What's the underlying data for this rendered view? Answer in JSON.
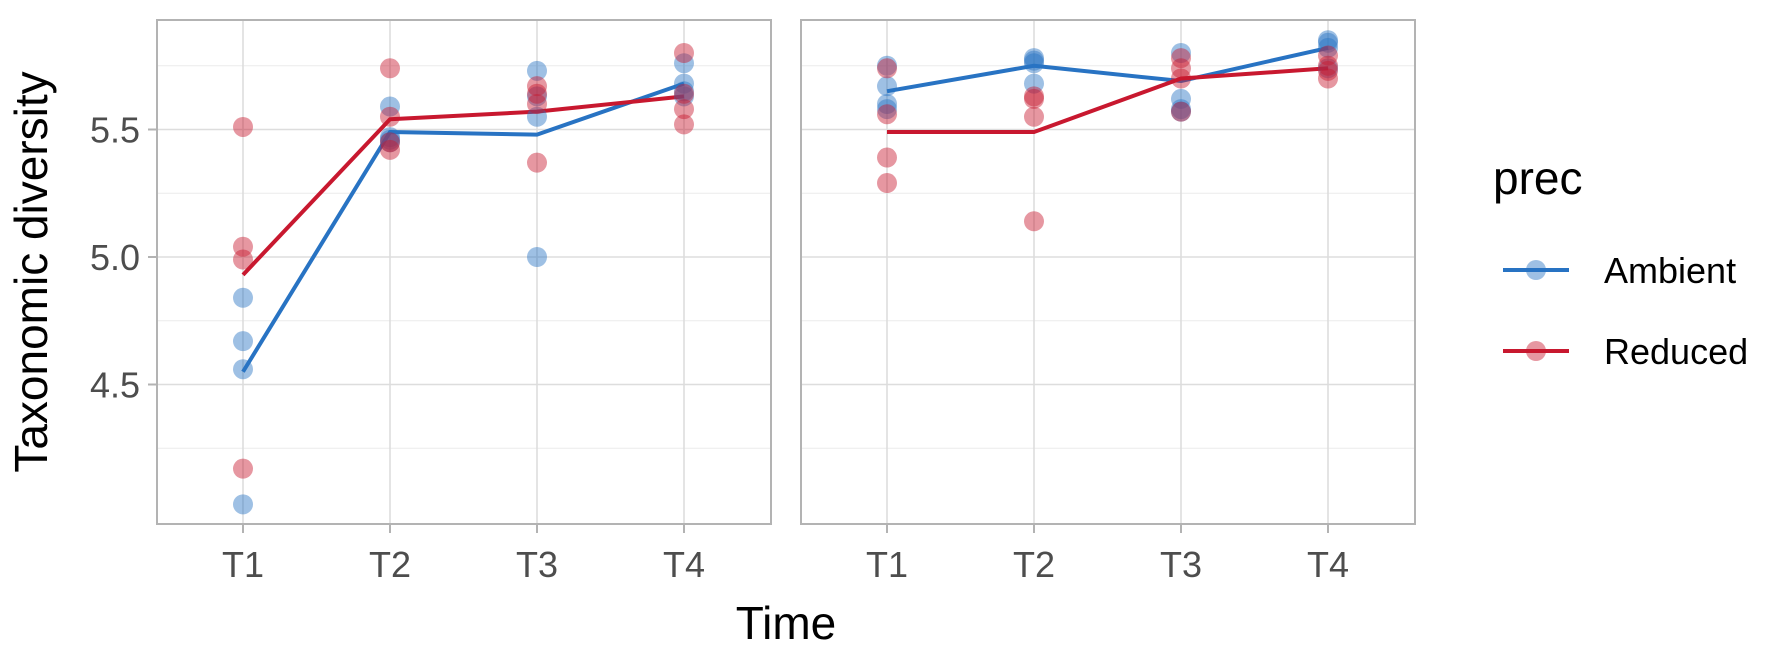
{
  "chart_data": {
    "type": "scatter",
    "xlabel": "Time",
    "ylabel": "Taxonomic diversity",
    "categories": [
      "T1",
      "T2",
      "T3",
      "T4"
    ],
    "yticks": [
      4.5,
      5.0,
      5.5
    ],
    "ytick_labels": [
      "4.5",
      "5.0",
      "5.5"
    ],
    "ylim": [
      3.95,
      5.93
    ],
    "grid": true,
    "legend": {
      "title": "prec",
      "position": "right",
      "entries": [
        {
          "name": "Ambient",
          "color": "#2873c3"
        },
        {
          "name": "Reduced",
          "color": "#c8182f"
        }
      ]
    },
    "panels": [
      {
        "series": [
          {
            "name": "Ambient",
            "color": "#2873c3",
            "line": [
              4.55,
              5.49,
              5.48,
              5.68
            ],
            "points": [
              {
                "x": "T1",
                "y": 4.84
              },
              {
                "x": "T1",
                "y": 4.67
              },
              {
                "x": "T1",
                "y": 4.56
              },
              {
                "x": "T1",
                "y": 4.03
              },
              {
                "x": "T2",
                "y": 5.59
              },
              {
                "x": "T2",
                "y": 5.47
              },
              {
                "x": "T2",
                "y": 5.46
              },
              {
                "x": "T2",
                "y": 5.45
              },
              {
                "x": "T3",
                "y": 5.73
              },
              {
                "x": "T3",
                "y": 5.63
              },
              {
                "x": "T3",
                "y": 5.55
              },
              {
                "x": "T3",
                "y": 5.0
              },
              {
                "x": "T4",
                "y": 5.76
              },
              {
                "x": "T4",
                "y": 5.68
              },
              {
                "x": "T4",
                "y": 5.65
              },
              {
                "x": "T4",
                "y": 5.63
              }
            ]
          },
          {
            "name": "Reduced",
            "color": "#c8182f",
            "line": [
              4.93,
              5.54,
              5.57,
              5.63
            ],
            "points": [
              {
                "x": "T1",
                "y": 5.51
              },
              {
                "x": "T1",
                "y": 5.04
              },
              {
                "x": "T1",
                "y": 4.99
              },
              {
                "x": "T1",
                "y": 4.17
              },
              {
                "x": "T2",
                "y": 5.74
              },
              {
                "x": "T2",
                "y": 5.55
              },
              {
                "x": "T2",
                "y": 5.45
              },
              {
                "x": "T2",
                "y": 5.42
              },
              {
                "x": "T3",
                "y": 5.67
              },
              {
                "x": "T3",
                "y": 5.64
              },
              {
                "x": "T3",
                "y": 5.6
              },
              {
                "x": "T3",
                "y": 5.37
              },
              {
                "x": "T4",
                "y": 5.8
              },
              {
                "x": "T4",
                "y": 5.64
              },
              {
                "x": "T4",
                "y": 5.58
              },
              {
                "x": "T4",
                "y": 5.52
              }
            ]
          }
        ]
      },
      {
        "series": [
          {
            "name": "Ambient",
            "color": "#2873c3",
            "line": [
              5.65,
              5.75,
              5.69,
              5.82
            ],
            "points": [
              {
                "x": "T1",
                "y": 5.75
              },
              {
                "x": "T1",
                "y": 5.67
              },
              {
                "x": "T1",
                "y": 5.6
              },
              {
                "x": "T1",
                "y": 5.58
              },
              {
                "x": "T2",
                "y": 5.78
              },
              {
                "x": "T2",
                "y": 5.77
              },
              {
                "x": "T2",
                "y": 5.76
              },
              {
                "x": "T2",
                "y": 5.68
              },
              {
                "x": "T3",
                "y": 5.8
              },
              {
                "x": "T3",
                "y": 5.62
              },
              {
                "x": "T3",
                "y": 5.58
              },
              {
                "x": "T3",
                "y": 5.57
              },
              {
                "x": "T4",
                "y": 5.85
              },
              {
                "x": "T4",
                "y": 5.84
              },
              {
                "x": "T4",
                "y": 5.82
              },
              {
                "x": "T4",
                "y": 5.74
              }
            ]
          },
          {
            "name": "Reduced",
            "color": "#c8182f",
            "line": [
              5.49,
              5.49,
              5.7,
              5.74
            ],
            "points": [
              {
                "x": "T1",
                "y": 5.74
              },
              {
                "x": "T1",
                "y": 5.56
              },
              {
                "x": "T1",
                "y": 5.39
              },
              {
                "x": "T1",
                "y": 5.29
              },
              {
                "x": "T2",
                "y": 5.63
              },
              {
                "x": "T2",
                "y": 5.62
              },
              {
                "x": "T2",
                "y": 5.55
              },
              {
                "x": "T2",
                "y": 5.14
              },
              {
                "x": "T3",
                "y": 5.78
              },
              {
                "x": "T3",
                "y": 5.74
              },
              {
                "x": "T3",
                "y": 5.7
              },
              {
                "x": "T3",
                "y": 5.57
              },
              {
                "x": "T4",
                "y": 5.79
              },
              {
                "x": "T4",
                "y": 5.75
              },
              {
                "x": "T4",
                "y": 5.73
              },
              {
                "x": "T4",
                "y": 5.7
              }
            ]
          }
        ]
      }
    ]
  }
}
